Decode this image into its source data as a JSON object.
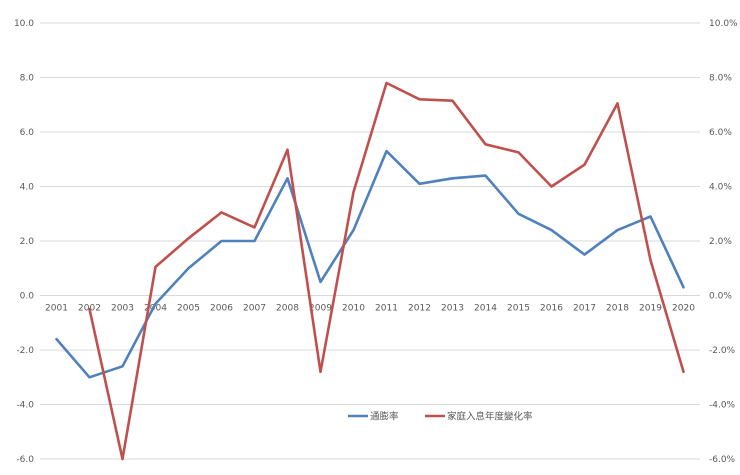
{
  "chart_data": {
    "type": "line",
    "categories": [
      "2001",
      "2002",
      "2003",
      "2004",
      "2005",
      "2006",
      "2007",
      "2008",
      "2009",
      "2010",
      "2011",
      "2012",
      "2013",
      "2014",
      "2015",
      "2016",
      "2017",
      "2018",
      "2019",
      "2020"
    ],
    "series": [
      {
        "name": "通膨率",
        "axis": "left",
        "color": "#4f81bd",
        "values": [
          -1.6,
          -3.0,
          -2.6,
          -0.3,
          1.0,
          2.0,
          2.0,
          4.3,
          0.5,
          2.4,
          5.3,
          4.1,
          4.3,
          4.4,
          3.0,
          2.4,
          1.5,
          2.4,
          2.9,
          0.3
        ]
      },
      {
        "name": "家庭入息年度變化率",
        "axis": "right",
        "color": "#c0504d",
        "values": [
          null,
          -0.5,
          -6.0,
          1.05,
          2.1,
          3.05,
          2.5,
          5.35,
          -2.8,
          3.8,
          7.8,
          7.2,
          7.15,
          5.55,
          5.25,
          4.0,
          4.8,
          7.05,
          1.3,
          -2.8
        ]
      }
    ],
    "ylim_left": [
      -6,
      10
    ],
    "ylim_right": [
      -6,
      10
    ],
    "y_ticks": [
      -6,
      -4,
      -2,
      0,
      2,
      4,
      6,
      8,
      10
    ],
    "left_tick_labels": [
      "-6.0",
      "-4.0",
      "-2.0",
      "0.0",
      "2.0",
      "4.0",
      "6.0",
      "8.0",
      "10.0"
    ],
    "right_tick_labels": [
      "-6.0%",
      "-4.0%",
      "-2.0%",
      "0.0%",
      "2.0%",
      "4.0%",
      "6.0%",
      "8.0%",
      "10.0%"
    ],
    "grid": true,
    "legend_position": "bottom-center",
    "gridline_color": "#d9d9d9"
  }
}
